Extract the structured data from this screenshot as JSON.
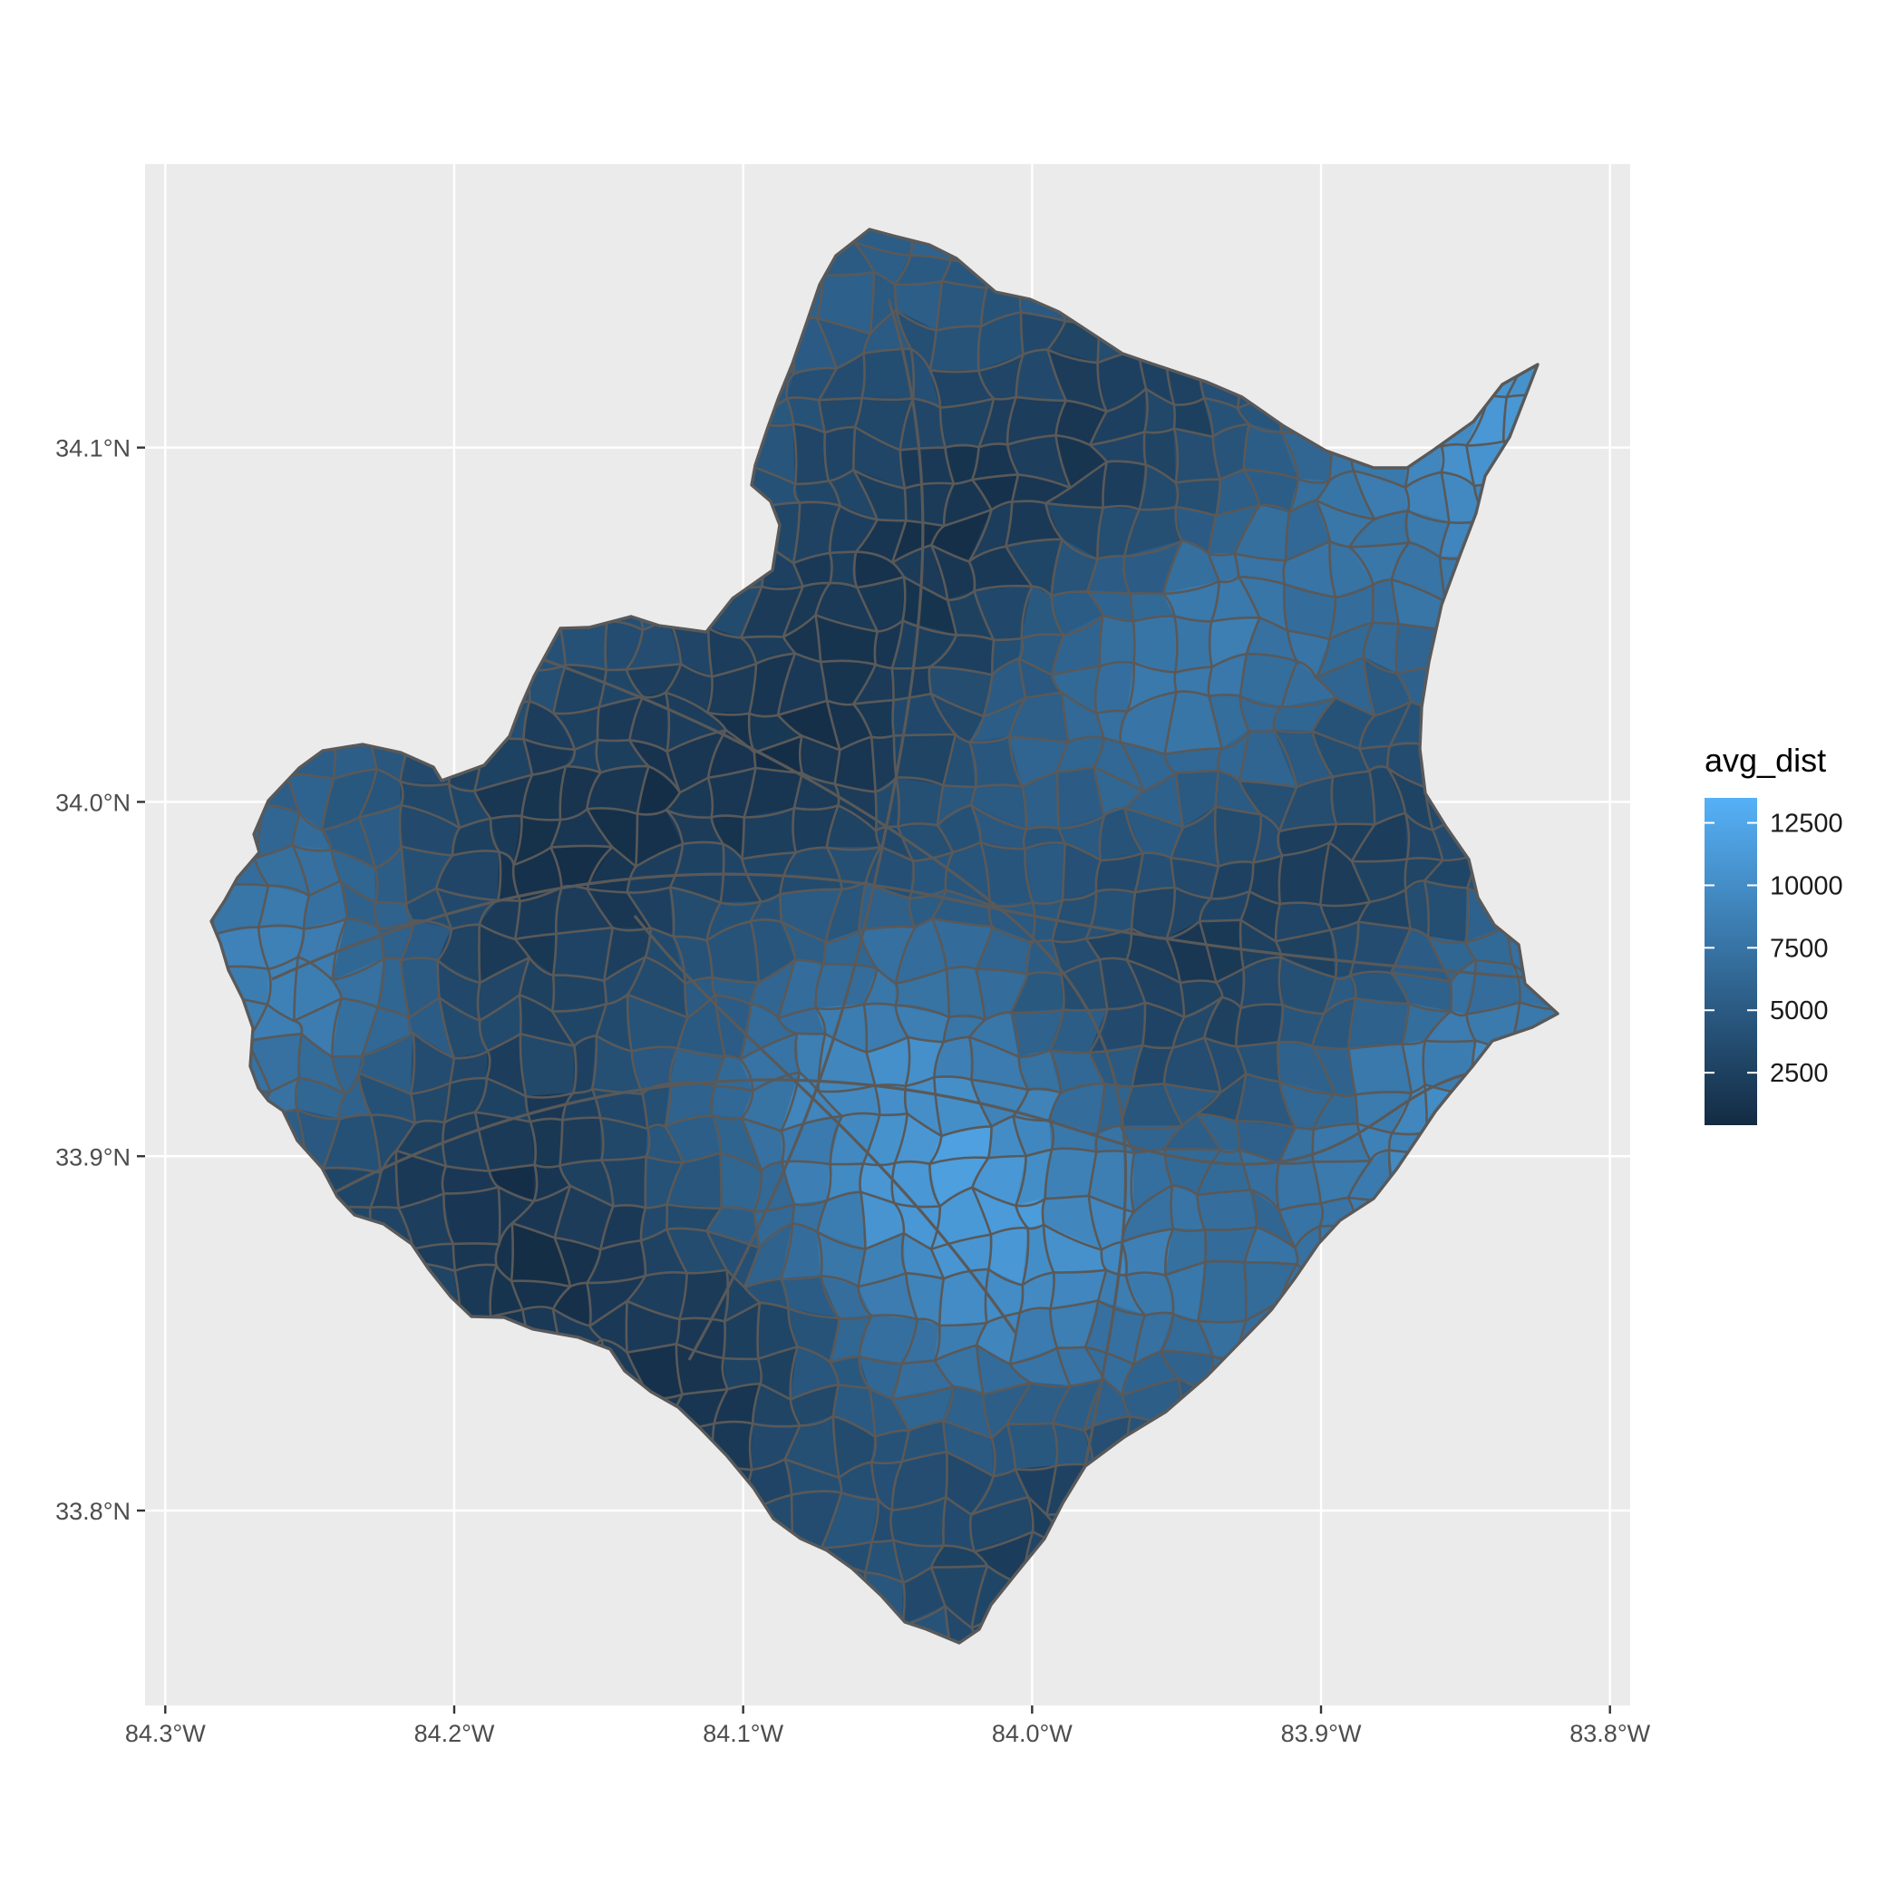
{
  "chart_data": {
    "type": "choropleth-map",
    "x_ticks": [
      {
        "value": -84.3,
        "label": "84.3°W"
      },
      {
        "value": -84.2,
        "label": "84.2°W"
      },
      {
        "value": -84.1,
        "label": "84.1°W"
      },
      {
        "value": -84.0,
        "label": "84.0°W"
      },
      {
        "value": -83.9,
        "label": "83.9°W"
      },
      {
        "value": -83.8,
        "label": "83.8°W"
      }
    ],
    "y_ticks": [
      {
        "value": 34.1,
        "label": "34.1°N"
      },
      {
        "value": 34.0,
        "label": "34.0°N"
      },
      {
        "value": 33.9,
        "label": "33.9°N"
      },
      {
        "value": 33.8,
        "label": "33.8°N"
      }
    ],
    "xlim": [
      -84.307,
      -83.793
    ],
    "ylim": [
      33.745,
      34.18
    ],
    "grid": true,
    "legend": {
      "title": "avg_dist",
      "placement": "right",
      "range": [
        400,
        13500
      ],
      "breaks": [
        {
          "value": 12500,
          "label": "12500"
        },
        {
          "value": 10000,
          "label": "10000"
        },
        {
          "value": 7500,
          "label": "7500"
        },
        {
          "value": 5000,
          "label": "5000"
        },
        {
          "value": 2500,
          "label": "2500"
        }
      ],
      "color_low": "#132B43",
      "color_high": "#56B1F7"
    },
    "panel_background": "#EBEBEB",
    "gridline_color": "#FFFFFF",
    "border_color": "#595959"
  }
}
